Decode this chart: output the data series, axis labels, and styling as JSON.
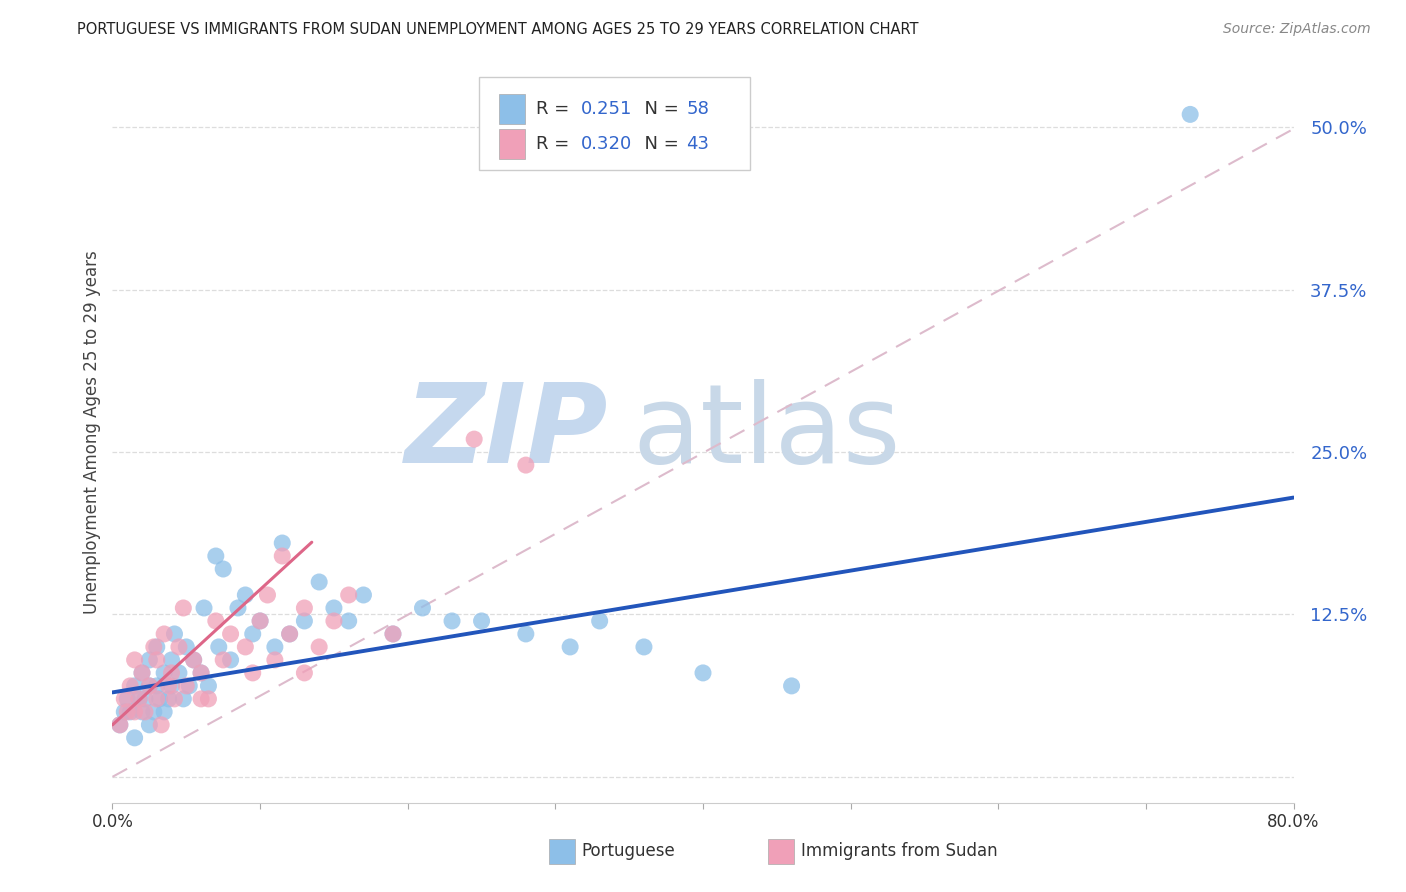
{
  "title": "PORTUGUESE VS IMMIGRANTS FROM SUDAN UNEMPLOYMENT AMONG AGES 25 TO 29 YEARS CORRELATION CHART",
  "source": "Source: ZipAtlas.com",
  "ylabel": "Unemployment Among Ages 25 to 29 years",
  "xlim": [
    0.0,
    0.8
  ],
  "ylim": [
    -0.02,
    0.55
  ],
  "yticks": [
    0.0,
    0.125,
    0.25,
    0.375,
    0.5
  ],
  "yticklabels": [
    "",
    "12.5%",
    "25.0%",
    "37.5%",
    "50.0%"
  ],
  "xtick_positions": [
    0.0,
    0.1,
    0.2,
    0.3,
    0.4,
    0.5,
    0.6,
    0.7,
    0.8
  ],
  "R1": 0.251,
  "N1": 58,
  "R2": 0.32,
  "N2": 43,
  "color_portuguese": "#8DBFE8",
  "color_sudan": "#F0A0B8",
  "color_line_portuguese": "#2255BB",
  "color_ref_line": "#DDBBCC",
  "watermark_zip_color": "#C5D8EE",
  "watermark_atlas_color": "#C8D8E8",
  "portuguese_x": [
    0.005,
    0.008,
    0.01,
    0.012,
    0.015,
    0.015,
    0.018,
    0.02,
    0.02,
    0.022,
    0.025,
    0.025,
    0.025,
    0.028,
    0.03,
    0.03,
    0.032,
    0.035,
    0.035,
    0.038,
    0.04,
    0.04,
    0.042,
    0.045,
    0.048,
    0.05,
    0.052,
    0.055,
    0.06,
    0.062,
    0.065,
    0.07,
    0.072,
    0.075,
    0.08,
    0.085,
    0.09,
    0.095,
    0.1,
    0.11,
    0.115,
    0.12,
    0.13,
    0.14,
    0.15,
    0.16,
    0.17,
    0.19,
    0.21,
    0.23,
    0.25,
    0.28,
    0.31,
    0.33,
    0.36,
    0.4,
    0.46,
    0.73
  ],
  "portuguese_y": [
    0.04,
    0.05,
    0.06,
    0.05,
    0.07,
    0.03,
    0.06,
    0.05,
    0.08,
    0.06,
    0.07,
    0.04,
    0.09,
    0.05,
    0.07,
    0.1,
    0.06,
    0.08,
    0.05,
    0.06,
    0.09,
    0.07,
    0.11,
    0.08,
    0.06,
    0.1,
    0.07,
    0.09,
    0.08,
    0.13,
    0.07,
    0.17,
    0.1,
    0.16,
    0.09,
    0.13,
    0.14,
    0.11,
    0.12,
    0.1,
    0.18,
    0.11,
    0.12,
    0.15,
    0.13,
    0.12,
    0.14,
    0.11,
    0.13,
    0.12,
    0.12,
    0.11,
    0.1,
    0.12,
    0.1,
    0.08,
    0.07,
    0.51
  ],
  "sudan_x": [
    0.005,
    0.008,
    0.01,
    0.012,
    0.015,
    0.015,
    0.018,
    0.02,
    0.022,
    0.025,
    0.028,
    0.03,
    0.03,
    0.033,
    0.035,
    0.038,
    0.04,
    0.042,
    0.045,
    0.048,
    0.05,
    0.055,
    0.06,
    0.065,
    0.07,
    0.075,
    0.08,
    0.09,
    0.095,
    0.1,
    0.105,
    0.11,
    0.115,
    0.12,
    0.13,
    0.14,
    0.15,
    0.16,
    0.19,
    0.245,
    0.28,
    0.13,
    0.06
  ],
  "sudan_y": [
    0.04,
    0.06,
    0.05,
    0.07,
    0.05,
    0.09,
    0.06,
    0.08,
    0.05,
    0.07,
    0.1,
    0.06,
    0.09,
    0.04,
    0.11,
    0.07,
    0.08,
    0.06,
    0.1,
    0.13,
    0.07,
    0.09,
    0.08,
    0.06,
    0.12,
    0.09,
    0.11,
    0.1,
    0.08,
    0.12,
    0.14,
    0.09,
    0.17,
    0.11,
    0.13,
    0.1,
    0.12,
    0.14,
    0.11,
    0.26,
    0.24,
    0.08,
    0.06
  ],
  "blue_line_x0": 0.0,
  "blue_line_y0": 0.065,
  "blue_line_x1": 0.8,
  "blue_line_y1": 0.215,
  "pink_line_x0": 0.0,
  "pink_line_y0": 0.04,
  "pink_line_x1": 0.12,
  "pink_line_y1": 0.165
}
